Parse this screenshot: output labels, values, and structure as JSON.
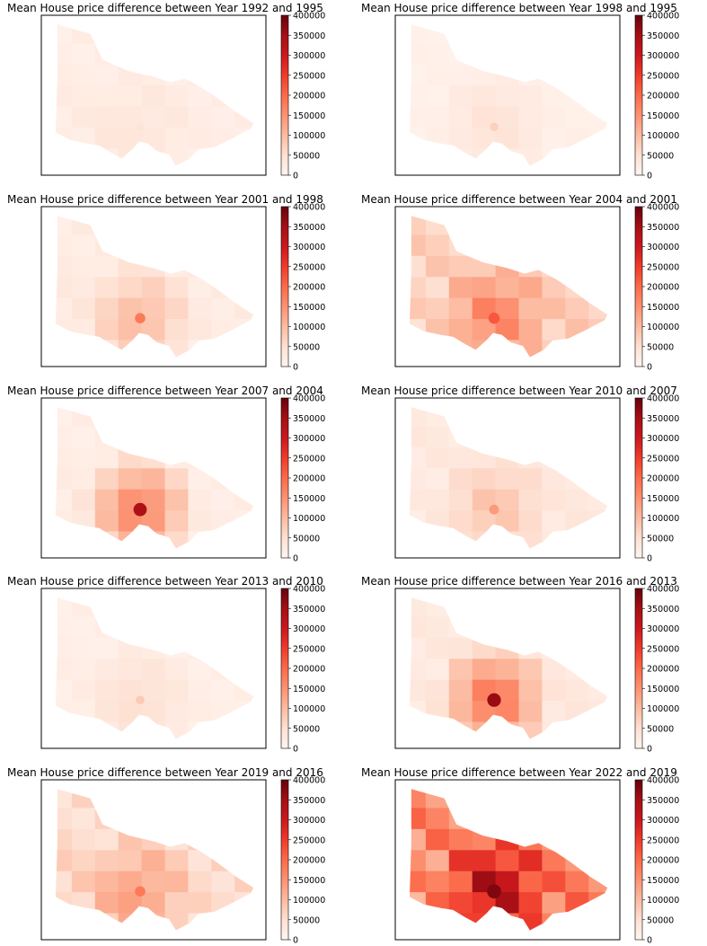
{
  "chart_data": {
    "type": "heatmap",
    "colormap": "Reds",
    "colorbar": {
      "vmin": 0,
      "vmax": 400000,
      "ticks": [
        "0",
        "50000",
        "100000",
        "150000",
        "200000",
        "250000",
        "300000",
        "350000",
        "400000"
      ]
    },
    "grid": false,
    "panels": [
      {
        "title": "Mean House price difference between Year 1992 and 1995",
        "intensity": 0.05,
        "hotspot": 0.1
      },
      {
        "title": "Mean House price difference between Year 1998 and 1995",
        "intensity": 0.03,
        "hotspot": 0.18
      },
      {
        "title": "Mean House price difference between Year 2001 and 1998",
        "intensity": 0.06,
        "hotspot": 0.45
      },
      {
        "title": "Mean House price difference between Year 2004 and 2001",
        "intensity": 0.18,
        "hotspot": 0.55
      },
      {
        "title": "Mean House price difference between Year 2007 and 2004",
        "intensity": 0.05,
        "hotspot": 0.85
      },
      {
        "title": "Mean House price difference between Year 2010 and 2007",
        "intensity": 0.07,
        "hotspot": 0.35
      },
      {
        "title": "Mean House price difference between Year 2013 and 2010",
        "intensity": 0.04,
        "hotspot": 0.2
      },
      {
        "title": "Mean House price difference between Year 2016 and 2013",
        "intensity": 0.07,
        "hotspot": 0.9
      },
      {
        "title": "Mean House price difference between Year 2019 and 2016",
        "intensity": 0.15,
        "hotspot": 0.45
      },
      {
        "title": "Mean House price difference between Year 2022 and 2019",
        "intensity": 0.42,
        "hotspot": 0.95
      }
    ]
  }
}
